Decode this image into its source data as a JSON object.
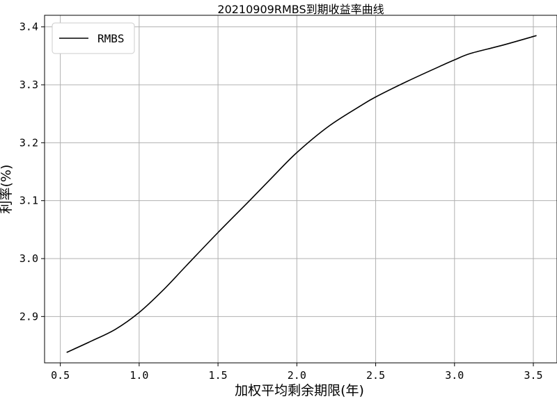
{
  "chart_data": {
    "type": "line",
    "title": "20210909RMBS到期收益率曲线",
    "xlabel": "加权平均剩余期限(年)",
    "ylabel": "利率(%)",
    "xlim": [
      0.4,
      3.65
    ],
    "ylim": [
      2.82,
      3.42
    ],
    "xticks": [
      "0.5",
      "1.0",
      "1.5",
      "2.0",
      "2.5",
      "3.0",
      "3.5"
    ],
    "yticks": [
      "2.9",
      "3.0",
      "3.1",
      "3.2",
      "3.3",
      "3.4"
    ],
    "grid": true,
    "legend_position": "top-left",
    "series": [
      {
        "name": "RMBS",
        "color": "#000000",
        "x": [
          0.54,
          0.7,
          0.85,
          1.0,
          1.15,
          1.3,
          1.5,
          1.7,
          1.85,
          2.0,
          2.2,
          2.4,
          2.5,
          2.7,
          2.9,
          3.0,
          3.1,
          3.3,
          3.52
        ],
        "y": [
          2.838,
          2.858,
          2.878,
          2.907,
          2.945,
          2.988,
          3.045,
          3.1,
          3.142,
          3.183,
          3.228,
          3.263,
          3.279,
          3.306,
          3.331,
          3.343,
          3.354,
          3.368,
          3.385
        ]
      }
    ]
  }
}
